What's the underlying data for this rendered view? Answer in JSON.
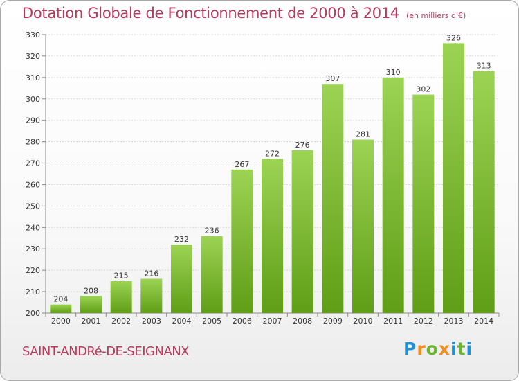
{
  "header": {
    "title": "Dotation Globale de Fonctionnement de 2000 à 2014",
    "unit": "(en milliers d'€)"
  },
  "footer": {
    "commune": "SAINT-ANDRé-DE-SEIGNANX",
    "logo_letters": [
      "P",
      "r",
      "o",
      "x",
      "i",
      "t",
      "i"
    ],
    "logo_colors": [
      "#1e90d6",
      "#f28c1e",
      "#6bb52e",
      "#f28c1e",
      "#1e90d6",
      "#6bb52e",
      "#1e90d6"
    ]
  },
  "colors": {
    "bar_top": "#9cd354",
    "bar_bottom": "#5f9e16",
    "title": "#b8395b",
    "grid": "#d8d8d8"
  },
  "chart_data": {
    "type": "bar",
    "title": "Dotation Globale de Fonctionnement de 2000 à 2014",
    "subtitle": "(en milliers d'€)",
    "xlabel": "",
    "ylabel": "",
    "categories": [
      "2000",
      "2001",
      "2002",
      "2003",
      "2004",
      "2005",
      "2006",
      "2007",
      "2008",
      "2009",
      "2010",
      "2011",
      "2012",
      "2013",
      "2014"
    ],
    "values": [
      204,
      208,
      215,
      216,
      232,
      236,
      267,
      272,
      276,
      307,
      281,
      310,
      302,
      326,
      313
    ],
    "ylim": [
      200,
      330
    ],
    "yticks": [
      200,
      210,
      220,
      230,
      240,
      250,
      260,
      270,
      280,
      290,
      300,
      310,
      320,
      330
    ],
    "grid": true,
    "data_labels": true
  }
}
